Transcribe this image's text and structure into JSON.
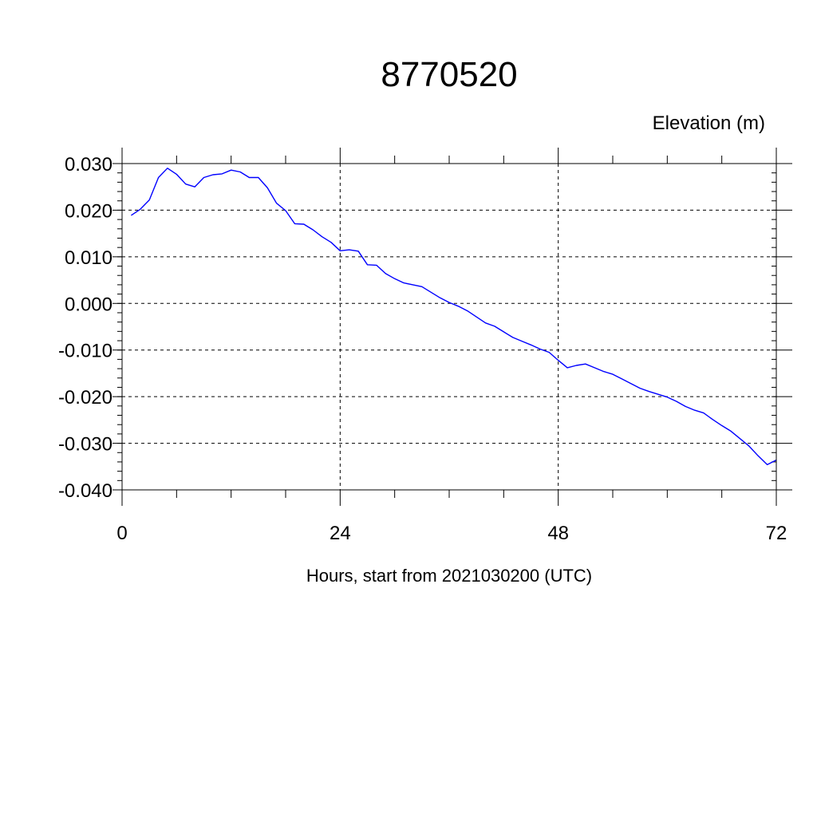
{
  "chart_data": {
    "type": "line",
    "title": "8770520",
    "subtitle": "Elevation (m)",
    "xlabel": "Hours, start from 2021030200 (UTC)",
    "ylabel": "",
    "xlim": [
      0,
      72
    ],
    "ylim": [
      -0.04,
      0.03
    ],
    "x_ticks": [
      {
        "value": 0,
        "label": "0"
      },
      {
        "value": 24,
        "label": "24"
      },
      {
        "value": 48,
        "label": "48"
      },
      {
        "value": 72,
        "label": "72"
      }
    ],
    "y_ticks": [
      {
        "value": 0.03,
        "label": "0.030"
      },
      {
        "value": 0.02,
        "label": "0.020"
      },
      {
        "value": 0.01,
        "label": "0.010"
      },
      {
        "value": 0.0,
        "label": "0.000"
      },
      {
        "value": -0.01,
        "label": "-0.010"
      },
      {
        "value": -0.02,
        "label": "-0.020"
      },
      {
        "value": -0.03,
        "label": "-0.030"
      },
      {
        "value": -0.04,
        "label": "-0.040"
      }
    ],
    "grid": true,
    "grid_style": "dashed",
    "line_color": "#0000ff",
    "series": [
      {
        "x": [
          1,
          2,
          3,
          4,
          5,
          6,
          7,
          8,
          9,
          10,
          11,
          12,
          13,
          14,
          15,
          16,
          17,
          18,
          19,
          20,
          21,
          22,
          23,
          24,
          25,
          26,
          27,
          28,
          29,
          30,
          31,
          32,
          33,
          34,
          35,
          36,
          37,
          38,
          39,
          40,
          41,
          42,
          43,
          44,
          45,
          46,
          47,
          48,
          49,
          50,
          51,
          52,
          53,
          54,
          55,
          56,
          57,
          58,
          59,
          60,
          61,
          62,
          63,
          64,
          65,
          66,
          67,
          68,
          69,
          70,
          71,
          72
        ],
        "y": [
          0.0189,
          0.0202,
          0.0222,
          0.027,
          0.029,
          0.0277,
          0.0256,
          0.025,
          0.027,
          0.0276,
          0.0278,
          0.0286,
          0.0282,
          0.027,
          0.027,
          0.0248,
          0.0215,
          0.0199,
          0.0171,
          0.017,
          0.0158,
          0.0143,
          0.0131,
          0.0113,
          0.0115,
          0.0112,
          0.0083,
          0.0082,
          0.0064,
          0.0053,
          0.0044,
          0.004,
          0.0036,
          0.0024,
          0.0012,
          0.0002,
          -0.0006,
          -0.0016,
          -0.0029,
          -0.0042,
          -0.0049,
          -0.0061,
          -0.0073,
          -0.0081,
          -0.0089,
          -0.0098,
          -0.0105,
          -0.0122,
          -0.0138,
          -0.0133,
          -0.013,
          -0.0138,
          -0.0146,
          -0.0152,
          -0.0162,
          -0.0172,
          -0.0182,
          -0.0189,
          -0.0195,
          -0.0201,
          -0.021,
          -0.0221,
          -0.0229,
          -0.0235,
          -0.0249,
          -0.0262,
          -0.0274,
          -0.029,
          -0.0306,
          -0.0327,
          -0.0346,
          -0.0336
        ]
      }
    ]
  }
}
